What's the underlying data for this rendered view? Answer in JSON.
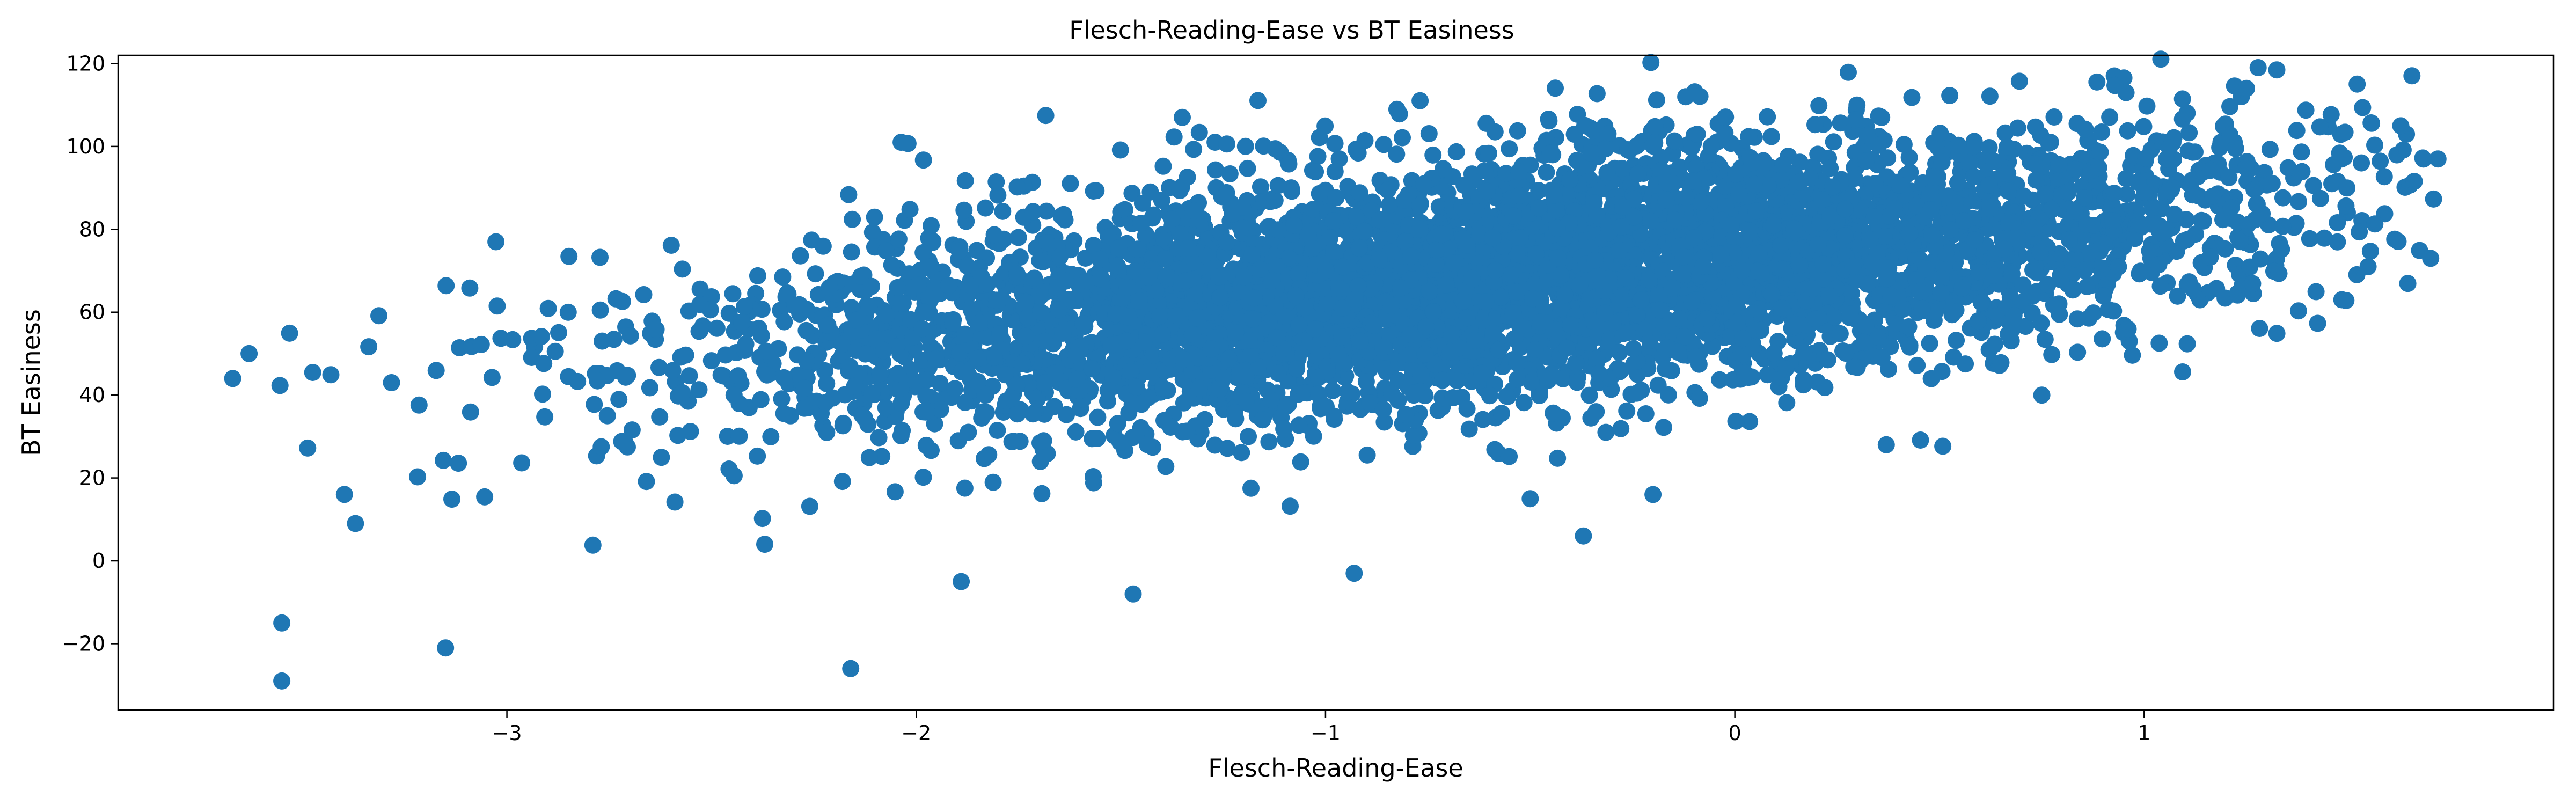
{
  "chart_data": {
    "type": "scatter",
    "title": "Flesch-Reading-Ease vs BT Easiness",
    "xlabel": "Flesch-Reading-Ease",
    "ylabel": "BT Easiness",
    "xlim": [
      -3.95,
      2.0
    ],
    "ylim": [
      -36,
      122
    ],
    "x_ticks": [
      -3,
      -2,
      -1,
      0,
      1
    ],
    "x_tick_labels": [
      "−3",
      "−2",
      "−1",
      "0",
      "1"
    ],
    "y_ticks": [
      -20,
      0,
      20,
      40,
      60,
      80,
      100,
      120
    ],
    "y_tick_labels": [
      "−20",
      "0",
      "20",
      "40",
      "60",
      "80",
      "100",
      "120"
    ],
    "grid": false,
    "legend": "none",
    "marker_color": "#1f77b4",
    "trend": {
      "slope": 9.5,
      "intercept": 73
    },
    "point_count_shown": 5200,
    "notable_points": [
      {
        "x": -3.55,
        "y": -15
      },
      {
        "x": -3.55,
        "y": -29
      },
      {
        "x": -3.15,
        "y": -21
      },
      {
        "x": -2.16,
        "y": -26
      },
      {
        "x": -1.47,
        "y": -8
      },
      {
        "x": -1.89,
        "y": -5
      },
      {
        "x": -0.93,
        "y": -3
      },
      {
        "x": -0.37,
        "y": 6
      },
      {
        "x": -3.37,
        "y": 9
      },
      {
        "x": -2.37,
        "y": 4
      },
      {
        "x": 1.25,
        "y": 114
      },
      {
        "x": 1.7,
        "y": 73
      },
      {
        "x": -1.35,
        "y": 107
      },
      {
        "x": -0.12,
        "y": 112
      },
      {
        "x": -3.67,
        "y": 44
      },
      {
        "x": -3.63,
        "y": 50
      },
      {
        "x": 0.37,
        "y": 28
      },
      {
        "x": 0.75,
        "y": 40
      },
      {
        "x": -0.2,
        "y": 16
      },
      {
        "x": -0.5,
        "y": 15
      }
    ]
  }
}
